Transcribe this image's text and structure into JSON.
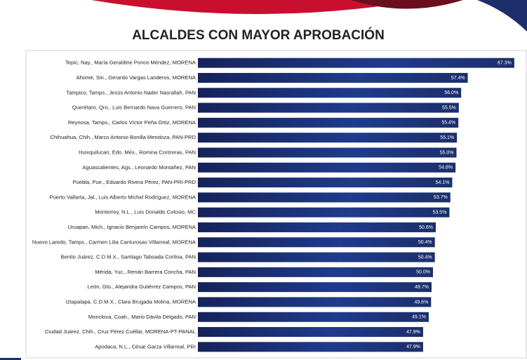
{
  "chart_data": {
    "type": "bar",
    "orientation": "horizontal",
    "title": "ALCALDES CON MAYOR APROBACIÓN",
    "categories": [
      "Tepic, Nay., María Geraldine Ponce Méndez, MORENA",
      "Ahome, Sin., Gerardo Vargas Landeros, MORENA",
      "Tampico, Tamps., Jesús Antonio Nader Nasrallah, PAN",
      "Querétaro, Qro., Luis Bernardo Nava Guerrero, PAN",
      "Reynosa, Tamps., Carlos Víctor Peña Ortiz, MORENA",
      "Chihuahua, Chih., Marco Antonio Bonilla Mendoza, PAN-PRD",
      "Huixquilucan, Edo. Méx., Romina Contreras, PAN",
      "Aguascalientes, Ags., Leonardo Montañez, PAN",
      "Puebla, Pue., Eduardo Rivera Pérez, PAN-PRI-PRD",
      "Puerto Vallarta, Jal., Luis Alberto Michel Rodríguez, MORENA",
      "Monterrey, N.L., Luis Donaldo Colosio, MC",
      "Uruapan, Mich., Ignacio Benjamín Campos, MORENA",
      "Nuevo Laredo, Tamps., Carmen Lilia Canturosas Villarreal, MORENA",
      "Benito Juárez, C.D.M.X., Santiago Taboada Cortina, PAN",
      "Mérida, Yuc., Renán Barrera Concha, PAN",
      "León, Gto., Alejandra Gutiérrez Campos, PAN",
      "Iztapalapa, C.D.M.X., Clara Brugada Molina, MORENA",
      "Monclova, Coah., Mario Dávila Delgado, PAN",
      "Ciudad Juárez, Chih., Cruz Pérez Cuéllar, MORENA-PT-PANAL",
      "Apodaca, N.L., César Garza Villarreal, PRI"
    ],
    "values": [
      67.3,
      57.4,
      56.0,
      55.5,
      55.4,
      55.1,
      55.0,
      54.8,
      54.1,
      53.7,
      53.5,
      50.6,
      50.4,
      50.4,
      50.0,
      49.7,
      49.6,
      49.1,
      47.9,
      47.9
    ],
    "value_labels": [
      "67.3%",
      "57.4%",
      "56.0%",
      "55.5%",
      "55.4%",
      "55.1%",
      "55.0%",
      "54.8%",
      "54.1%",
      "53.7%",
      "53.5%",
      "50.6%",
      "50.4%",
      "50.4%",
      "50.0%",
      "49.7%",
      "49.6%",
      "49.1%",
      "47.9%",
      "47.9%"
    ],
    "color": "#1c2f6b",
    "xlim": [
      0,
      70
    ]
  }
}
